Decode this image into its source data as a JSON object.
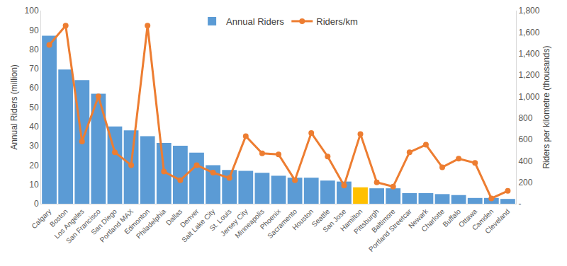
{
  "chart_data": {
    "type": "bar",
    "categories": [
      "Calgary",
      "Boston",
      "Los Angeles",
      "San Francisco",
      "San Diego",
      "Portland MAX",
      "Edmonton",
      "Philadelphia",
      "Dallas",
      "Denver",
      "Salt Lake City",
      "St. Louis",
      "Jersey City",
      "Minneapolis",
      "Phoenix",
      "Sacramento",
      "Houston",
      "Seattle",
      "San Jose",
      "Hamilton",
      "Pittsburgh",
      "Baltimore",
      "Portland Streetcar",
      "Newark",
      "Charlotte",
      "Buffalo",
      "Ottawa",
      "Camden",
      "Cleveland"
    ],
    "series": [
      {
        "name": "Annual Riders",
        "type": "bar",
        "colors": [
          "#5b9bd5",
          "#5b9bd5",
          "#5b9bd5",
          "#5b9bd5",
          "#5b9bd5",
          "#5b9bd5",
          "#5b9bd5",
          "#5b9bd5",
          "#5b9bd5",
          "#5b9bd5",
          "#5b9bd5",
          "#5b9bd5",
          "#5b9bd5",
          "#5b9bd5",
          "#5b9bd5",
          "#5b9bd5",
          "#5b9bd5",
          "#5b9bd5",
          "#5b9bd5",
          "#ffc000",
          "#5b9bd5",
          "#5b9bd5",
          "#5b9bd5",
          "#5b9bd5",
          "#5b9bd5",
          "#5b9bd5",
          "#5b9bd5",
          "#5b9bd5",
          "#5b9bd5"
        ],
        "values": [
          87,
          69.5,
          64,
          57,
          40,
          38,
          35,
          31.5,
          30,
          26.5,
          20,
          17.5,
          17,
          16,
          14.5,
          13.5,
          13.5,
          12,
          11.5,
          8.5,
          8,
          8,
          5.5,
          5.5,
          5,
          4.5,
          3,
          3,
          2.5
        ]
      },
      {
        "name": "Riders/km",
        "type": "line",
        "axis": "y2",
        "color": "#ed7d31",
        "marker": "circle",
        "line_style": "solid",
        "values": [
          1480,
          1660,
          580,
          1000,
          480,
          360,
          1660,
          300,
          220,
          360,
          290,
          240,
          630,
          470,
          460,
          220,
          660,
          440,
          170,
          650,
          200,
          160,
          480,
          550,
          340,
          420,
          380,
          50,
          120
        ]
      }
    ],
    "y_label": "Annual Riders (million)",
    "y2_label": "Riders per kilometre (thousands)",
    "ylim": [
      0,
      100
    ],
    "yticks": [
      0,
      10,
      20,
      30,
      40,
      50,
      60,
      70,
      80,
      90,
      100
    ],
    "y2lim": [
      0,
      1800
    ],
    "y2ticks": [
      {
        "value": 0,
        "label": "-"
      },
      200,
      400,
      600,
      800,
      {
        "value": 1000,
        "label": "1,000"
      },
      {
        "value": 1200,
        "label": "1,200"
      },
      {
        "value": 1400,
        "label": "1,400"
      },
      {
        "value": 1600,
        "label": "1,600"
      },
      {
        "value": 1800,
        "label": "1,800"
      }
    ],
    "grid": false,
    "legend": "top"
  }
}
